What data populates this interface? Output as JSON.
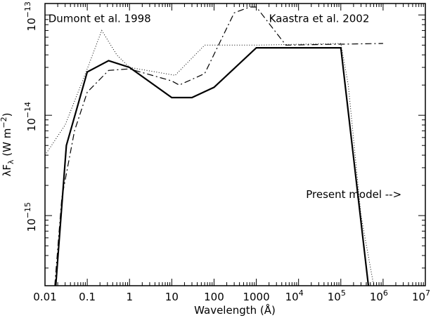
{
  "chart_data": {
    "type": "line",
    "title": "",
    "xlabel": "Wavelength (Å)",
    "ylabel": "λF_λ (W m^-2)",
    "xscale": "log",
    "yscale": "log",
    "xlim": [
      0.01,
      10000000
    ],
    "ylim": [
      2e-16,
      1.3e-13
    ],
    "grid": false,
    "x_ticks": [
      {
        "value": 0.01,
        "label": "0.01"
      },
      {
        "value": 0.1,
        "label": "0.1"
      },
      {
        "value": 1,
        "label": "1"
      },
      {
        "value": 10,
        "label": "10"
      },
      {
        "value": 100,
        "label": "100"
      },
      {
        "value": 1000,
        "label": "1000"
      },
      {
        "value": 10000,
        "base": "10",
        "exp": "4"
      },
      {
        "value": 100000,
        "base": "10",
        "exp": "5"
      },
      {
        "value": 1000000,
        "base": "10",
        "exp": "6"
      },
      {
        "value": 10000000,
        "base": "10",
        "exp": "7"
      }
    ],
    "y_ticks": [
      {
        "value": 1e-15,
        "base": "10",
        "exp": "−15"
      },
      {
        "value": 1e-14,
        "base": "10",
        "exp": "−14"
      },
      {
        "value": 1e-13,
        "base": "10",
        "exp": "−13"
      }
    ],
    "annotations": [
      {
        "text": "Dumont et al. 1998",
        "x": 0.012,
        "y": 8.5e-14
      },
      {
        "text": "Kaastra et al. 2002",
        "x": 2000,
        "y": 8.5e-14
      },
      {
        "text": "Present model -->",
        "x": 15000,
        "y": 1.5e-15
      }
    ],
    "series": [
      {
        "style": "solid",
        "color": "#000000",
        "stroke": 2.2,
        "points": [
          [
            0.018,
            2e-16
          ],
          [
            0.032,
            5e-15
          ],
          [
            0.1,
            2.7e-14
          ],
          [
            0.32,
            3.5e-14
          ],
          [
            1,
            3e-14
          ],
          [
            10,
            1.5e-14
          ],
          [
            30,
            1.5e-14
          ],
          [
            100,
            1.9e-14
          ],
          [
            1000,
            4.7e-14
          ],
          [
            100000,
            4.7e-14
          ],
          [
            450000,
            2e-16
          ]
        ]
      },
      {
        "style": "dashdot",
        "color": "#000000",
        "stroke": 1.2,
        "points": [
          [
            0.017,
            2e-16
          ],
          [
            0.025,
            1.5e-15
          ],
          [
            0.05,
            7e-15
          ],
          [
            0.1,
            1.7e-14
          ],
          [
            0.32,
            2.8e-14
          ],
          [
            1,
            2.9e-14
          ],
          [
            10,
            2.2e-14
          ],
          [
            15,
            2e-14
          ],
          [
            60,
            2.6e-14
          ],
          [
            300,
            1.05e-13
          ],
          [
            700,
            1.2e-13
          ],
          [
            1000,
            1.2e-13
          ],
          [
            5000,
            5e-14
          ],
          [
            1000000,
            5.2e-14
          ]
        ]
      },
      {
        "style": "dotted",
        "color": "#000000",
        "stroke": 1,
        "points": [
          [
            0.01,
            4e-15
          ],
          [
            0.03,
            8e-15
          ],
          [
            0.1,
            2.9e-14
          ],
          [
            0.22,
            7e-14
          ],
          [
            0.5,
            4e-14
          ],
          [
            1,
            3e-14
          ],
          [
            12,
            2.5e-14
          ],
          [
            60,
            5e-14
          ],
          [
            1000,
            5e-14
          ],
          [
            100000,
            5.2e-14
          ],
          [
            150000,
            2e-14
          ],
          [
            300000,
            1e-15
          ],
          [
            600000,
            2e-16
          ]
        ]
      }
    ]
  }
}
